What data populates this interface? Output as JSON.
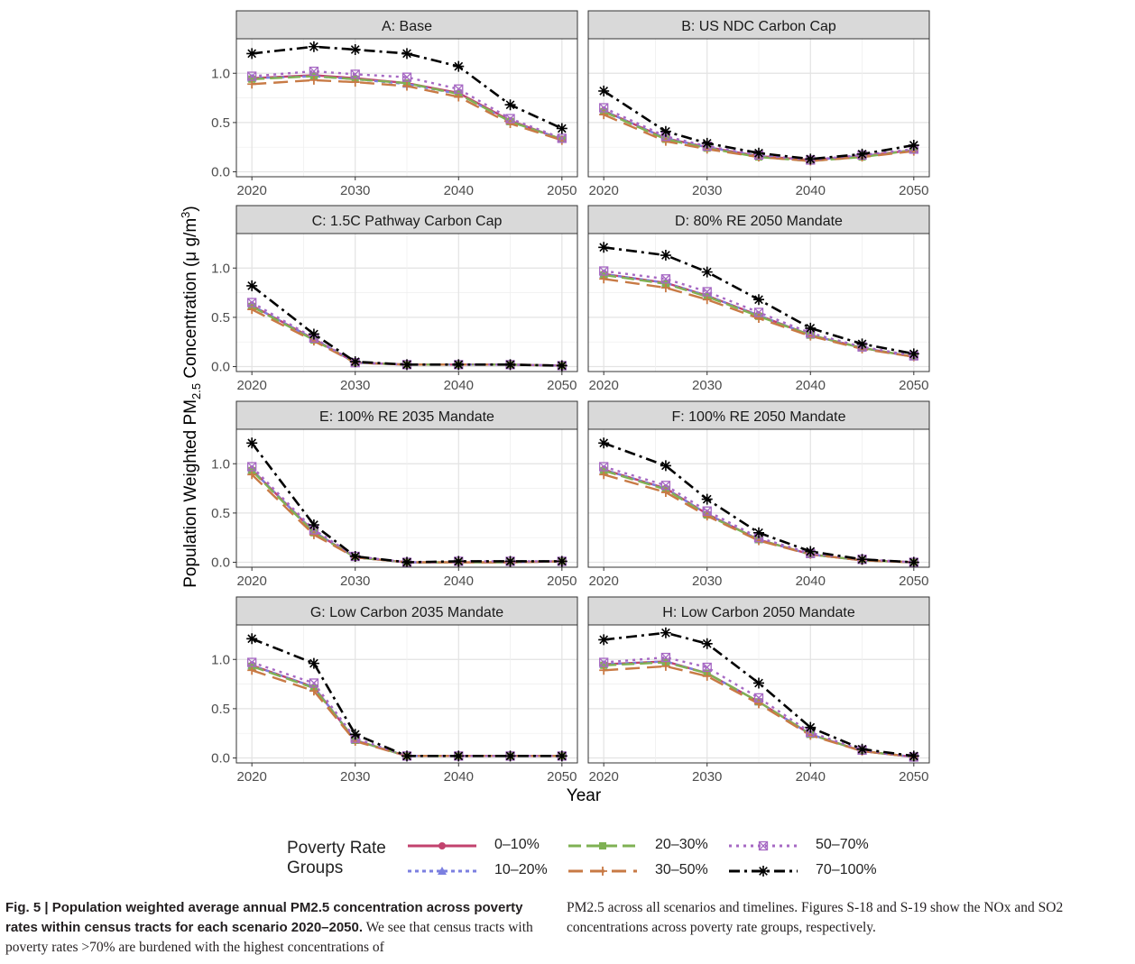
{
  "chart_data": {
    "type": "line",
    "ylabel_prefix": "Population Weighted PM",
    "ylabel_sub": "2.5",
    "ylabel_suffix": " Concentration (μ g/m",
    "ylabel_sup": "3",
    "ylabel_end": ")",
    "xlabel": "Year",
    "x": [
      2020,
      2026,
      2030,
      2035,
      2040,
      2045,
      2050
    ],
    "xticks": [
      "2020",
      "2030",
      "2040",
      "2050"
    ],
    "yticks": [
      "0.0",
      "0.5",
      "1.0"
    ],
    "ylim": [
      -0.05,
      1.35
    ],
    "xlim": [
      2018.5,
      2051.5
    ],
    "grid": true,
    "legend_position": "bottom",
    "legend": {
      "title_line1": "Poverty Rate",
      "title_line2": "Groups",
      "entries": [
        {
          "label": "0–10%",
          "color": "#c2426e",
          "marker": "circle",
          "dash": "solid"
        },
        {
          "label": "10–20%",
          "color": "#7b7fe0",
          "marker": "triangle",
          "dash": "dotted"
        },
        {
          "label": "20–30%",
          "color": "#7fb153",
          "marker": "square",
          "dash": "dashed"
        },
        {
          "label": "30–50%",
          "color": "#c87a45",
          "marker": "plus",
          "dash": "longdash"
        },
        {
          "label": "50–70%",
          "color": "#a668c3",
          "marker": "boxx",
          "dash": "dot"
        },
        {
          "label": "70–100%",
          "color": "#000000",
          "marker": "asterisk",
          "dash": "dashdot"
        }
      ]
    },
    "panels": [
      {
        "title": "A: Base",
        "series": [
          [
            0.95,
            0.98,
            0.95,
            0.9,
            0.8,
            0.52,
            0.33
          ],
          [
            0.95,
            0.97,
            0.94,
            0.89,
            0.79,
            0.51,
            0.33
          ],
          [
            0.94,
            0.97,
            0.94,
            0.9,
            0.79,
            0.51,
            0.33
          ],
          [
            0.89,
            0.93,
            0.91,
            0.87,
            0.76,
            0.49,
            0.32
          ],
          [
            0.97,
            1.02,
            0.99,
            0.96,
            0.84,
            0.54,
            0.34
          ],
          [
            1.2,
            1.27,
            1.24,
            1.2,
            1.07,
            0.68,
            0.44
          ]
        ]
      },
      {
        "title": "B: US NDC Carbon Cap",
        "series": [
          [
            0.62,
            0.34,
            0.25,
            0.16,
            0.12,
            0.16,
            0.22
          ],
          [
            0.62,
            0.34,
            0.25,
            0.16,
            0.12,
            0.16,
            0.22
          ],
          [
            0.61,
            0.33,
            0.24,
            0.15,
            0.11,
            0.15,
            0.22
          ],
          [
            0.58,
            0.31,
            0.23,
            0.15,
            0.11,
            0.15,
            0.21
          ],
          [
            0.65,
            0.36,
            0.26,
            0.17,
            0.12,
            0.17,
            0.23
          ],
          [
            0.82,
            0.41,
            0.29,
            0.19,
            0.13,
            0.18,
            0.27
          ]
        ]
      },
      {
        "title": "C: 1.5C Pathway Carbon Cap",
        "series": [
          [
            0.62,
            0.28,
            0.04,
            0.02,
            0.02,
            0.02,
            0.01
          ],
          [
            0.62,
            0.28,
            0.04,
            0.02,
            0.02,
            0.02,
            0.01
          ],
          [
            0.61,
            0.27,
            0.04,
            0.02,
            0.02,
            0.02,
            0.01
          ],
          [
            0.58,
            0.26,
            0.04,
            0.02,
            0.02,
            0.02,
            0.01
          ],
          [
            0.65,
            0.29,
            0.04,
            0.02,
            0.02,
            0.02,
            0.01
          ],
          [
            0.82,
            0.33,
            0.05,
            0.02,
            0.02,
            0.02,
            0.01
          ]
        ]
      },
      {
        "title": "D: 80% RE 2050 Mandate",
        "series": [
          [
            0.94,
            0.85,
            0.72,
            0.52,
            0.32,
            0.19,
            0.1
          ],
          [
            0.94,
            0.85,
            0.72,
            0.52,
            0.32,
            0.19,
            0.1
          ],
          [
            0.93,
            0.84,
            0.71,
            0.51,
            0.32,
            0.19,
            0.1
          ],
          [
            0.89,
            0.8,
            0.68,
            0.49,
            0.31,
            0.18,
            0.1
          ],
          [
            0.97,
            0.89,
            0.76,
            0.55,
            0.34,
            0.2,
            0.11
          ],
          [
            1.21,
            1.13,
            0.96,
            0.68,
            0.39,
            0.23,
            0.13
          ]
        ]
      },
      {
        "title": "E: 100% RE 2035 Mandate",
        "series": [
          [
            0.94,
            0.31,
            0.05,
            0.0,
            0.0,
            0.0,
            0.01
          ],
          [
            0.94,
            0.31,
            0.05,
            0.0,
            0.0,
            0.0,
            0.01
          ],
          [
            0.93,
            0.3,
            0.05,
            0.0,
            0.0,
            0.0,
            0.01
          ],
          [
            0.89,
            0.28,
            0.05,
            0.0,
            0.0,
            0.0,
            0.01
          ],
          [
            0.97,
            0.33,
            0.06,
            0.0,
            0.01,
            0.01,
            0.01
          ],
          [
            1.21,
            0.38,
            0.06,
            0.0,
            0.01,
            0.01,
            0.01
          ]
        ]
      },
      {
        "title": "F: 100% RE 2050 Mandate",
        "series": [
          [
            0.94,
            0.75,
            0.49,
            0.23,
            0.08,
            0.02,
            0.0
          ],
          [
            0.94,
            0.75,
            0.49,
            0.23,
            0.08,
            0.02,
            0.0
          ],
          [
            0.93,
            0.74,
            0.48,
            0.23,
            0.08,
            0.02,
            0.0
          ],
          [
            0.89,
            0.71,
            0.47,
            0.22,
            0.08,
            0.02,
            0.0
          ],
          [
            0.97,
            0.78,
            0.52,
            0.25,
            0.09,
            0.03,
            0.0
          ],
          [
            1.21,
            0.98,
            0.64,
            0.3,
            0.11,
            0.03,
            0.0
          ]
        ]
      },
      {
        "title": "G: Low Carbon 2035 Mandate",
        "series": [
          [
            0.94,
            0.72,
            0.18,
            0.02,
            0.02,
            0.02,
            0.02
          ],
          [
            0.94,
            0.72,
            0.18,
            0.02,
            0.02,
            0.02,
            0.02
          ],
          [
            0.93,
            0.71,
            0.18,
            0.02,
            0.02,
            0.02,
            0.02
          ],
          [
            0.89,
            0.68,
            0.17,
            0.02,
            0.02,
            0.02,
            0.02
          ],
          [
            0.97,
            0.76,
            0.2,
            0.02,
            0.02,
            0.02,
            0.02
          ],
          [
            1.21,
            0.96,
            0.24,
            0.02,
            0.02,
            0.02,
            0.02
          ]
        ]
      },
      {
        "title": "H: Low Carbon 2050 Mandate",
        "series": [
          [
            0.95,
            0.98,
            0.86,
            0.57,
            0.24,
            0.07,
            0.01
          ],
          [
            0.95,
            0.98,
            0.86,
            0.57,
            0.24,
            0.07,
            0.01
          ],
          [
            0.94,
            0.97,
            0.86,
            0.57,
            0.24,
            0.07,
            0.01
          ],
          [
            0.89,
            0.93,
            0.83,
            0.55,
            0.23,
            0.07,
            0.01
          ],
          [
            0.97,
            1.02,
            0.92,
            0.61,
            0.26,
            0.08,
            0.01
          ],
          [
            1.2,
            1.27,
            1.16,
            0.76,
            0.31,
            0.09,
            0.02
          ]
        ]
      }
    ]
  },
  "caption": {
    "fig_label": "Fig. 5 | ",
    "bold_text": "Population weighted average annual PM2.5 concentration across poverty rates within census tracts for each scenario 2020–2050.",
    "left_text": " We see that census tracts with poverty rates >70% are burdened with the highest concentrations of",
    "right_text": "PM2.5 across all scenarios and timelines. Figures S-18 and S-19 show the NOx and SO2 concentrations across poverty rate groups, respectively."
  }
}
